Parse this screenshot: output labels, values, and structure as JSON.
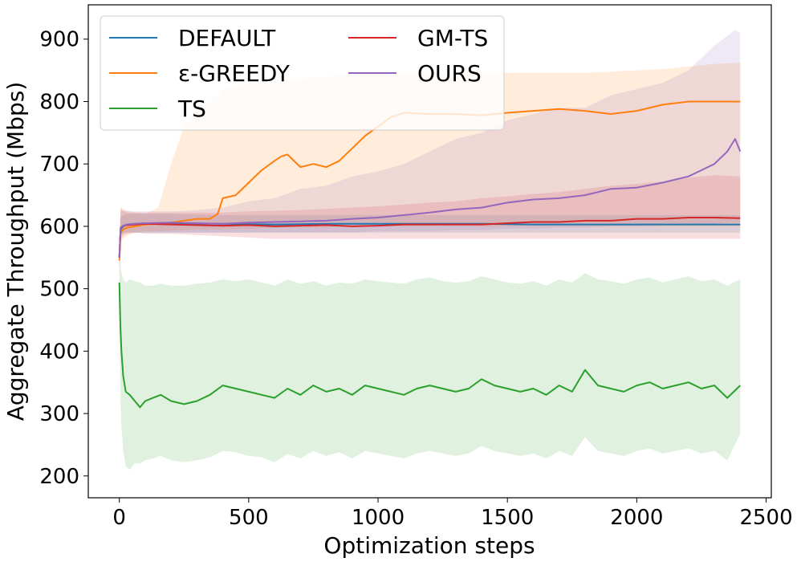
{
  "chart_data": {
    "type": "line",
    "title": "",
    "xlabel": "Optimization steps",
    "ylabel": "Aggregate Throughput (Mbps)",
    "xlim": [
      -120,
      2520
    ],
    "ylim": [
      165,
      955
    ],
    "xticks": [
      0,
      500,
      1000,
      1500,
      2000,
      2500
    ],
    "yticks": [
      200,
      300,
      400,
      500,
      600,
      700,
      800,
      900
    ],
    "xtick_labels": [
      "0",
      "500",
      "1000",
      "1500",
      "2000",
      "2500"
    ],
    "ytick_labels": [
      "200",
      "300",
      "400",
      "500",
      "600",
      "700",
      "800",
      "900"
    ],
    "grid": false,
    "legend": {
      "placement": "top-left",
      "columns": 2
    },
    "series": [
      {
        "name": "DEFAULT",
        "color": "#1f77b4",
        "x": [
          0,
          5,
          15,
          30,
          60,
          100,
          200,
          400,
          600,
          800,
          1000,
          1200,
          1400,
          1600,
          1800,
          2000,
          2200,
          2400
        ],
        "y": [
          550,
          595,
          600,
          603,
          604,
          605,
          605,
          604,
          603,
          604,
          604,
          604,
          604,
          603,
          603,
          603,
          603,
          603
        ],
        "band_upper": [
          560,
          615,
          618,
          620,
          620,
          620,
          620,
          618,
          618,
          618,
          618,
          618,
          618,
          618,
          618,
          618,
          618,
          618
        ],
        "band_lower": [
          540,
          585,
          590,
          590,
          590,
          590,
          590,
          590,
          590,
          590,
          590,
          590,
          590,
          590,
          590,
          590,
          590,
          590
        ]
      },
      {
        "name": "ε-GREEDY",
        "color": "#ff7f0e",
        "x": [
          0,
          5,
          15,
          30,
          60,
          100,
          150,
          200,
          250,
          300,
          350,
          380,
          400,
          450,
          500,
          550,
          600,
          625,
          650,
          700,
          750,
          800,
          850,
          900,
          950,
          1000,
          1050,
          1100,
          1200,
          1300,
          1400,
          1500,
          1600,
          1700,
          1800,
          1900,
          2000,
          2100,
          2200,
          2300,
          2400
        ],
        "y": [
          545,
          590,
          595,
          598,
          600,
          603,
          604,
          606,
          609,
          612,
          612,
          620,
          645,
          650,
          670,
          690,
          705,
          712,
          715,
          695,
          700,
          695,
          705,
          725,
          745,
          760,
          775,
          782,
          780,
          780,
          778,
          782,
          785,
          788,
          785,
          780,
          785,
          795,
          800,
          800,
          800
        ],
        "band_upper": [
          560,
          630,
          628,
          625,
          622,
          620,
          630,
          700,
          760,
          790,
          800,
          810,
          820,
          825,
          830,
          830,
          832,
          834,
          835,
          836,
          838,
          840,
          842,
          843,
          845,
          845,
          846,
          846,
          846,
          846,
          846,
          846,
          846,
          846,
          846,
          848,
          850,
          852,
          856,
          860,
          862
        ],
        "band_lower": [
          520,
          575,
          580,
          585,
          590,
          592,
          592,
          593,
          594,
          595,
          595,
          595,
          595,
          596,
          596,
          597,
          598,
          598,
          598,
          598,
          598,
          598,
          600,
          600,
          600,
          600,
          600,
          600,
          600,
          600,
          600,
          600,
          600,
          600,
          600,
          600,
          600,
          600,
          600,
          600,
          600
        ]
      },
      {
        "name": "TS",
        "color": "#2ca02c",
        "x": [
          0,
          4,
          8,
          15,
          25,
          40,
          60,
          80,
          100,
          130,
          160,
          200,
          250,
          300,
          350,
          400,
          450,
          500,
          550,
          600,
          650,
          700,
          750,
          800,
          850,
          900,
          950,
          1000,
          1050,
          1100,
          1150,
          1200,
          1250,
          1300,
          1350,
          1400,
          1450,
          1500,
          1550,
          1600,
          1650,
          1700,
          1750,
          1800,
          1850,
          1900,
          1950,
          2000,
          2050,
          2100,
          2150,
          2200,
          2250,
          2300,
          2350,
          2400
        ],
        "y": [
          510,
          440,
          400,
          360,
          335,
          330,
          320,
          310,
          320,
          325,
          330,
          320,
          315,
          320,
          330,
          345,
          340,
          335,
          330,
          325,
          340,
          330,
          345,
          335,
          340,
          330,
          345,
          340,
          335,
          330,
          340,
          345,
          340,
          335,
          340,
          355,
          345,
          340,
          335,
          340,
          330,
          345,
          335,
          370,
          345,
          340,
          335,
          345,
          350,
          340,
          345,
          350,
          340,
          345,
          325,
          345
        ],
        "band_upper": [
          560,
          540,
          525,
          515,
          510,
          515,
          512,
          510,
          505,
          505,
          508,
          505,
          505,
          508,
          510,
          515,
          512,
          515,
          510,
          505,
          515,
          508,
          512,
          505,
          510,
          508,
          515,
          512,
          510,
          508,
          515,
          518,
          512,
          510,
          512,
          520,
          515,
          510,
          508,
          512,
          505,
          515,
          510,
          525,
          515,
          512,
          508,
          515,
          518,
          510,
          515,
          520,
          512,
          515,
          505,
          515
        ],
        "band_lower": [
          480,
          330,
          280,
          240,
          215,
          210,
          220,
          220,
          225,
          228,
          232,
          225,
          222,
          225,
          230,
          240,
          238,
          232,
          230,
          222,
          235,
          228,
          240,
          232,
          238,
          228,
          240,
          236,
          232,
          228,
          236,
          240,
          236,
          232,
          236,
          248,
          240,
          236,
          232,
          236,
          228,
          240,
          232,
          262,
          240,
          236,
          232,
          240,
          244,
          236,
          240,
          244,
          236,
          240,
          225,
          268
        ]
      },
      {
        "name": "GM-TS",
        "color": "#d62728",
        "x": [
          0,
          5,
          15,
          30,
          60,
          100,
          200,
          300,
          400,
          500,
          600,
          700,
          800,
          900,
          1000,
          1100,
          1200,
          1300,
          1400,
          1500,
          1600,
          1700,
          1800,
          1900,
          2000,
          2100,
          2200,
          2300,
          2400
        ],
        "y": [
          550,
          597,
          601,
          602,
          603,
          604,
          603,
          602,
          601,
          602,
          600,
          601,
          602,
          600,
          601,
          603,
          603,
          603,
          603,
          605,
          607,
          607,
          609,
          609,
          612,
          612,
          614,
          614,
          613
        ],
        "band_upper": [
          565,
          630,
          625,
          622,
          622,
          622,
          622,
          622,
          622,
          624,
          625,
          626,
          628,
          630,
          632,
          635,
          638,
          640,
          645,
          648,
          652,
          655,
          660,
          665,
          668,
          672,
          678,
          682,
          680
        ],
        "band_lower": [
          535,
          580,
          585,
          588,
          590,
          588,
          588,
          586,
          584,
          582,
          580,
          580,
          580,
          580,
          580,
          580,
          580,
          580,
          580,
          580,
          580,
          580,
          580,
          580,
          580,
          580,
          580,
          580,
          580
        ]
      },
      {
        "name": "OURS",
        "color": "#9467bd",
        "x": [
          0,
          5,
          15,
          30,
          60,
          100,
          200,
          300,
          400,
          500,
          600,
          700,
          800,
          900,
          1000,
          1100,
          1200,
          1300,
          1400,
          1500,
          1600,
          1700,
          1800,
          1900,
          2000,
          2100,
          2200,
          2250,
          2300,
          2350,
          2380,
          2400
        ],
        "y": [
          550,
          598,
          601,
          603,
          604,
          605,
          606,
          605,
          604,
          606,
          607,
          608,
          609,
          612,
          614,
          618,
          622,
          627,
          630,
          638,
          643,
          645,
          650,
          660,
          662,
          670,
          680,
          690,
          700,
          720,
          740,
          720
        ],
        "band_upper": [
          565,
          625,
          625,
          625,
          624,
          624,
          624,
          626,
          630,
          640,
          645,
          660,
          665,
          680,
          688,
          700,
          720,
          740,
          750,
          770,
          780,
          790,
          790,
          810,
          820,
          830,
          850,
          870,
          890,
          905,
          915,
          910
        ],
        "band_lower": [
          535,
          585,
          588,
          590,
          590,
          590,
          590,
          590,
          590,
          590,
          590,
          590,
          590,
          590,
          592,
          592,
          592,
          594,
          594,
          596,
          596,
          598,
          598,
          600,
          600,
          602,
          602,
          604,
          604,
          606,
          606,
          606
        ]
      }
    ]
  }
}
